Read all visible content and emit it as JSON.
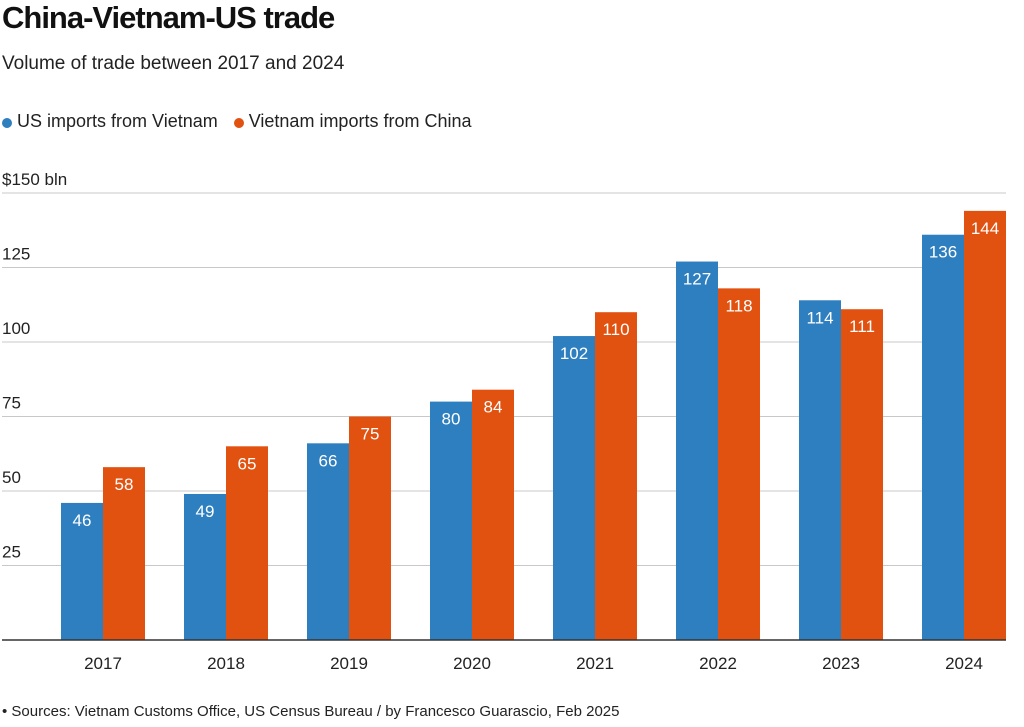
{
  "title": "China-Vietnam-US trade",
  "subtitle": "Volume of trade between 2017 and 2024",
  "footer": "• Sources: Vietnam Customs Office, US Census Bureau / by Francesco Guarascio, Feb 2025",
  "colors": {
    "us": "#2e7fbf",
    "vn": "#e1510f",
    "grid": "#c8c8c8",
    "axis": "#333333"
  },
  "chart_data": {
    "type": "bar",
    "title": "China-Vietnam-US trade",
    "subtitle": "Volume of trade between 2017 and 2024",
    "categories": [
      "2017",
      "2018",
      "2019",
      "2020",
      "2021",
      "2022",
      "2023",
      "2024"
    ],
    "series": [
      {
        "name": "US imports from Vietnam",
        "color": "#2e7fbf",
        "values": [
          46,
          49,
          66,
          80,
          102,
          127,
          114,
          136
        ]
      },
      {
        "name": "Vietnam imports from China",
        "color": "#e1510f",
        "values": [
          58,
          65,
          75,
          84,
          110,
          118,
          111,
          144
        ]
      }
    ],
    "ylim": [
      0,
      150
    ],
    "yticks": [
      {
        "value": 25,
        "label": "25"
      },
      {
        "value": 50,
        "label": "50"
      },
      {
        "value": 75,
        "label": "75"
      },
      {
        "value": 100,
        "label": "100"
      },
      {
        "value": 125,
        "label": "125"
      },
      {
        "value": 150,
        "label": "$150 bln"
      }
    ],
    "grid": true,
    "legend": "top-left"
  }
}
